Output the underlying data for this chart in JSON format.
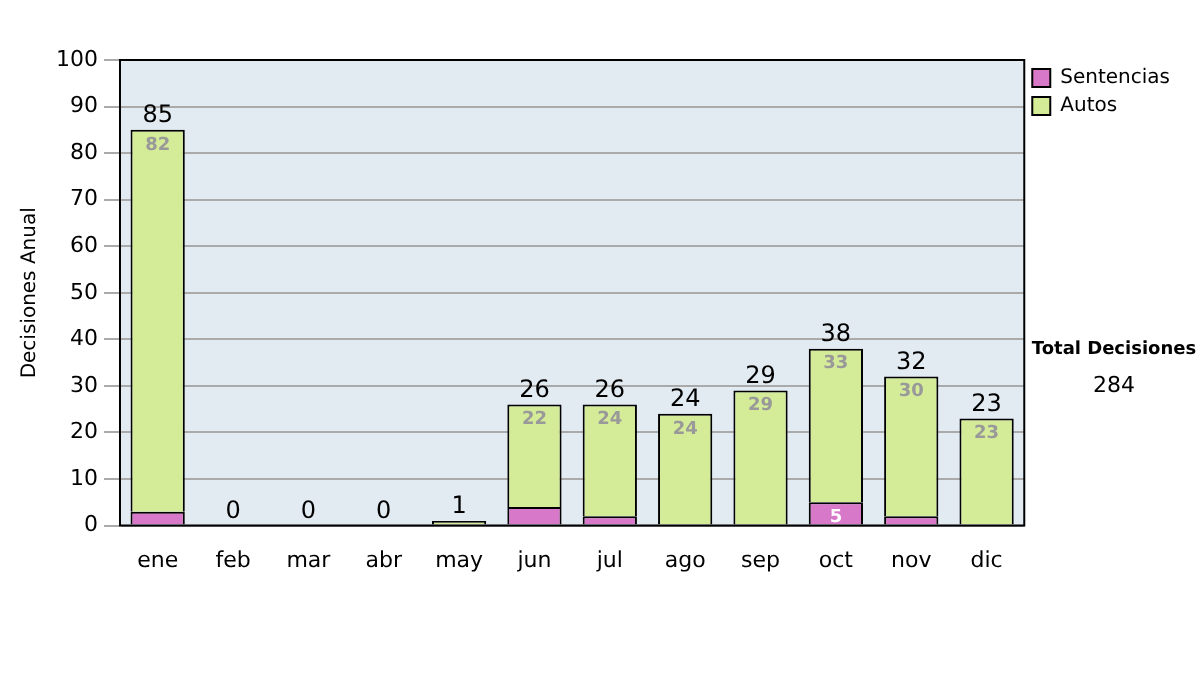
{
  "chart_data": {
    "type": "bar",
    "stacked": true,
    "ylabel": "Decisiones Anual",
    "categories": [
      "ene",
      "feb",
      "mar",
      "abr",
      "may",
      "jun",
      "jul",
      "ago",
      "sep",
      "oct",
      "nov",
      "dic"
    ],
    "series": [
      {
        "name": "Sentencias",
        "color": "#d878c8",
        "values": [
          3,
          0,
          0,
          0,
          0,
          4,
          2,
          0,
          0,
          5,
          2,
          0
        ],
        "value_labels": [
          null,
          null,
          null,
          null,
          null,
          null,
          null,
          null,
          null,
          "5",
          null,
          null
        ]
      },
      {
        "name": "Autos",
        "color": "#d4ec98",
        "values": [
          82,
          0,
          0,
          0,
          1,
          22,
          24,
          24,
          29,
          33,
          30,
          23
        ],
        "value_labels": [
          "82",
          null,
          null,
          null,
          null,
          "22",
          "24",
          "24",
          "29",
          "33",
          "30",
          "23"
        ]
      }
    ],
    "totals": [
      "85",
      "0",
      "0",
      "0",
      "1",
      "26",
      "26",
      "24",
      "29",
      "38",
      "32",
      "23"
    ],
    "ylim": [
      0,
      100
    ],
    "yticks": [
      0,
      10,
      20,
      30,
      40,
      50,
      60,
      70,
      80,
      90,
      100
    ],
    "grid": "y",
    "legend": "right",
    "annotations": [
      "Total Decisiones",
      "284"
    ]
  }
}
